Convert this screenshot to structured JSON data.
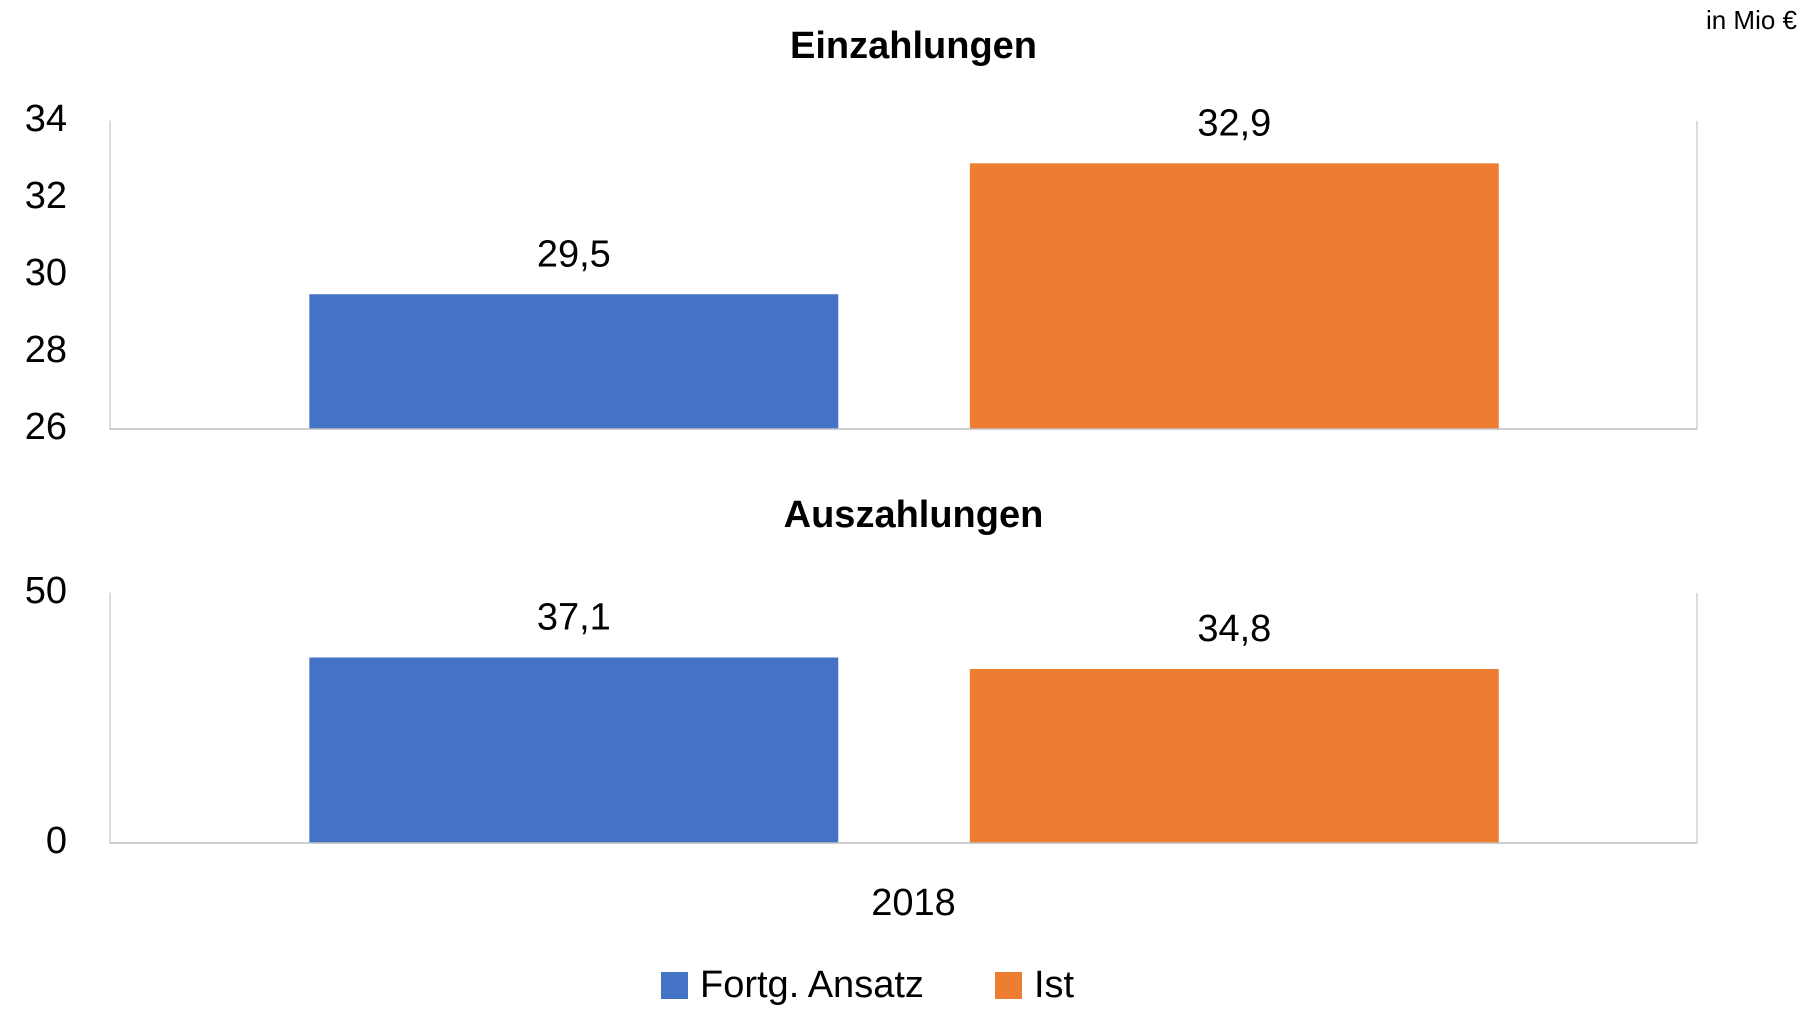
{
  "chart_data": [
    {
      "type": "bar",
      "title": "Einzahlungen",
      "y_unit": "in Mio €",
      "categories": [
        null
      ],
      "series": [
        {
          "name": "Fortg. Ansatz",
          "color": "#4472c4",
          "values": [
            29.5
          ],
          "value_labels": [
            "29,5"
          ]
        },
        {
          "name": "Ist",
          "color": "#ed7d31",
          "values": [
            32.9
          ],
          "value_labels": [
            "32,9"
          ]
        }
      ],
      "ylim": [
        26,
        34
      ],
      "yticks": [
        26,
        28,
        30,
        32,
        34
      ]
    },
    {
      "type": "bar",
      "title": "Auszahlungen",
      "categories": [
        "2018"
      ],
      "series": [
        {
          "color": "#4472c4",
          "values": [
            37.1
          ],
          "value_labels": [
            "37,1"
          ]
        },
        {
          "color": "#ed7d31",
          "values": [
            34.8
          ],
          "value_labels": [
            "34,8"
          ]
        }
      ],
      "ylim": [
        0,
        50
      ],
      "yticks": [
        0,
        50
      ]
    }
  ]
}
